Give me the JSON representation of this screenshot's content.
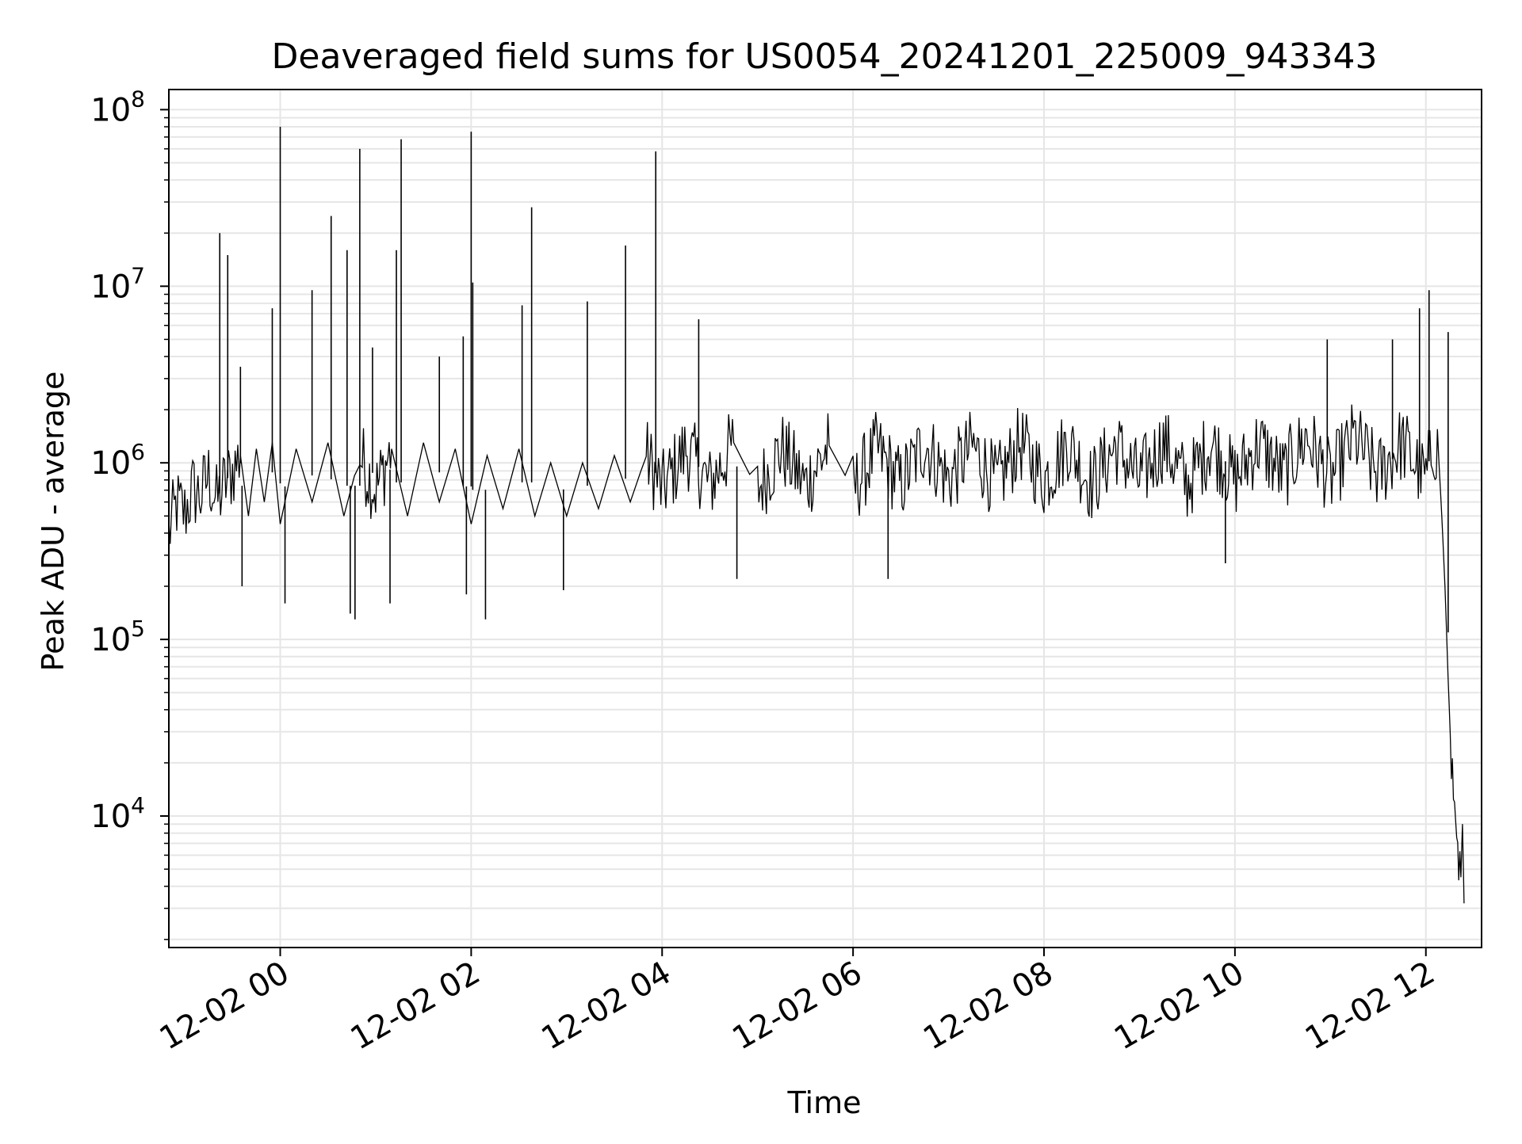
{
  "chart_data": {
    "type": "line",
    "title": "Deaveraged field sums for US0054_20241201_225009_943343",
    "xlabel": "Time",
    "ylabel": "Peak ADU - average",
    "yscale": "log",
    "xlim": [
      "2024-12-01 22:50",
      "2024-12-02 12:35"
    ],
    "ylim": [
      1800,
      130000000
    ],
    "x_ticks": [
      "2024-12-02 00:00",
      "2024-12-02 02:00",
      "2024-12-02 04:00",
      "2024-12-02 06:00",
      "2024-12-02 08:00",
      "2024-12-02 10:00",
      "2024-12-02 12:00"
    ],
    "x_tick_labels": [
      "12-02 00",
      "12-02 02",
      "12-02 04",
      "12-02 06",
      "12-02 08",
      "12-02 10",
      "12-02 12"
    ],
    "y_ticks": [
      10000,
      100000,
      1000000,
      10000000,
      100000000
    ],
    "y_tick_labels": [
      {
        "base": "10",
        "exp": "4"
      },
      {
        "base": "10",
        "exp": "5"
      },
      {
        "base": "10",
        "exp": "6"
      },
      {
        "base": "10",
        "exp": "7"
      },
      {
        "base": "10",
        "exp": "8"
      }
    ],
    "grid": true,
    "line_color": "#000000",
    "series": [
      {
        "points": [
          [
            "2024-12-01 22:50",
            400000
          ],
          [
            "2024-12-01 22:55",
            580000
          ],
          [
            "2024-12-01 23:00",
            520000
          ],
          [
            "2024-12-01 23:05",
            700000
          ],
          [
            "2024-12-01 23:10",
            650000
          ],
          [
            "2024-12-01 23:15",
            850000
          ],
          [
            "2024-12-01 23:20",
            600000
          ],
          [
            "2024-12-01 23:25",
            750000
          ],
          [
            "2024-12-01 23:30",
            900000
          ],
          [
            "2024-12-01 23:35",
            1100000
          ],
          [
            "2024-12-01 23:40",
            500000
          ],
          [
            "2024-12-01 23:45",
            1200000
          ],
          [
            "2024-12-01 23:50",
            600000
          ],
          [
            "2024-12-01 23:55",
            1300000
          ],
          [
            "2024-12-02 00:00",
            450000
          ],
          [
            "2024-12-02 00:10",
            1200000
          ],
          [
            "2024-12-02 00:20",
            600000
          ],
          [
            "2024-12-02 00:30",
            1300000
          ],
          [
            "2024-12-02 00:40",
            500000
          ],
          [
            "2024-12-02 00:50",
            1100000
          ],
          [
            "2024-12-02 01:00",
            700000
          ],
          [
            "2024-12-02 01:10",
            1200000
          ],
          [
            "2024-12-02 01:20",
            500000
          ],
          [
            "2024-12-02 01:30",
            1300000
          ],
          [
            "2024-12-02 01:40",
            600000
          ],
          [
            "2024-12-02 01:50",
            1200000
          ],
          [
            "2024-12-02 02:00",
            450000
          ],
          [
            "2024-12-02 02:10",
            1100000
          ],
          [
            "2024-12-02 02:20",
            550000
          ],
          [
            "2024-12-02 02:30",
            1200000
          ],
          [
            "2024-12-02 02:40",
            500000
          ],
          [
            "2024-12-02 02:50",
            1000000
          ],
          [
            "2024-12-02 03:00",
            500000
          ],
          [
            "2024-12-02 03:10",
            1000000
          ],
          [
            "2024-12-02 03:20",
            550000
          ],
          [
            "2024-12-02 03:30",
            1100000
          ],
          [
            "2024-12-02 03:40",
            600000
          ],
          [
            "2024-12-02 03:50",
            1100000
          ],
          [
            "2024-12-02 04:00",
            700000
          ],
          [
            "2024-12-02 04:15",
            1200000
          ],
          [
            "2024-12-02 04:30",
            750000
          ],
          [
            "2024-12-02 04:45",
            1300000
          ],
          [
            "2024-12-02 05:00",
            700000
          ],
          [
            "2024-12-02 05:15",
            1200000
          ],
          [
            "2024-12-02 05:30",
            750000
          ],
          [
            "2024-12-02 05:45",
            1250000
          ],
          [
            "2024-12-02 06:00",
            700000
          ],
          [
            "2024-12-02 06:15",
            1200000
          ],
          [
            "2024-12-02 06:30",
            750000
          ],
          [
            "2024-12-02 06:45",
            1300000
          ],
          [
            "2024-12-02 07:00",
            800000
          ],
          [
            "2024-12-02 07:15",
            1250000
          ],
          [
            "2024-12-02 07:30",
            750000
          ],
          [
            "2024-12-02 07:45",
            1300000
          ],
          [
            "2024-12-02 08:00",
            800000
          ],
          [
            "2024-12-02 08:15",
            1300000
          ],
          [
            "2024-12-02 08:30",
            750000
          ],
          [
            "2024-12-02 08:45",
            1250000
          ],
          [
            "2024-12-02 09:00",
            800000
          ],
          [
            "2024-12-02 09:15",
            1300000
          ],
          [
            "2024-12-02 09:30",
            750000
          ],
          [
            "2024-12-02 09:45",
            1300000
          ],
          [
            "2024-12-02 10:00",
            800000
          ],
          [
            "2024-12-02 10:15",
            1300000
          ],
          [
            "2024-12-02 10:30",
            850000
          ],
          [
            "2024-12-02 10:45",
            1400000
          ],
          [
            "2024-12-02 11:00",
            800000
          ],
          [
            "2024-12-02 11:15",
            1400000
          ],
          [
            "2024-12-02 11:30",
            850000
          ],
          [
            "2024-12-02 11:45",
            1300000
          ],
          [
            "2024-12-02 12:00",
            800000
          ],
          [
            "2024-12-02 12:05",
            1300000
          ],
          [
            "2024-12-02 12:08",
            1100000
          ],
          [
            "2024-12-02 12:10",
            500000
          ],
          [
            "2024-12-02 12:12",
            200000
          ],
          [
            "2024-12-02 12:14",
            60000
          ],
          [
            "2024-12-02 12:16",
            20000
          ],
          [
            "2024-12-02 12:18",
            12000
          ],
          [
            "2024-12-02 12:20",
            6000
          ],
          [
            "2024-12-02 12:22",
            4500
          ],
          [
            "2024-12-02 12:23",
            9000
          ],
          [
            "2024-12-02 12:24",
            3200
          ]
        ]
      }
    ],
    "spikes": [
      [
        "2024-12-01 23:22",
        20000000
      ],
      [
        "2024-12-01 23:27",
        15000000
      ],
      [
        "2024-12-01 23:35",
        3500000
      ],
      [
        "2024-12-01 23:55",
        7500000
      ],
      [
        "2024-12-02 00:00",
        80000000
      ],
      [
        "2024-12-02 00:20",
        9500000
      ],
      [
        "2024-12-02 00:32",
        25000000
      ],
      [
        "2024-12-02 00:42",
        16000000
      ],
      [
        "2024-12-02 00:50",
        60000000
      ],
      [
        "2024-12-02 00:58",
        4500000
      ],
      [
        "2024-12-02 01:13",
        16000000
      ],
      [
        "2024-12-02 01:16",
        68000000
      ],
      [
        "2024-12-02 01:40",
        4000000
      ],
      [
        "2024-12-02 01:55",
        5200000
      ],
      [
        "2024-12-02 02:00",
        75000000
      ],
      [
        "2024-12-02 02:01",
        10500000
      ],
      [
        "2024-12-02 02:32",
        7800000
      ],
      [
        "2024-12-02 02:38",
        28000000
      ],
      [
        "2024-12-02 03:13",
        8200000
      ],
      [
        "2024-12-02 03:37",
        17000000
      ],
      [
        "2024-12-02 03:56",
        58000000
      ],
      [
        "2024-12-02 04:23",
        6500000
      ],
      [
        "2024-12-02 10:58",
        5000000
      ],
      [
        "2024-12-02 11:39",
        5000000
      ],
      [
        "2024-12-02 11:56",
        7500000
      ],
      [
        "2024-12-02 12:02",
        9500000
      ],
      [
        "2024-12-02 12:14",
        5500000
      ]
    ],
    "dips": [
      [
        "2024-12-01 23:36",
        200000
      ],
      [
        "2024-12-02 00:03",
        160000
      ],
      [
        "2024-12-02 00:44",
        140000
      ],
      [
        "2024-12-02 00:47",
        130000
      ],
      [
        "2024-12-02 01:09",
        160000
      ],
      [
        "2024-12-02 01:57",
        180000
      ],
      [
        "2024-12-02 02:09",
        130000
      ],
      [
        "2024-12-02 02:58",
        190000
      ],
      [
        "2024-12-02 04:47",
        220000
      ],
      [
        "2024-12-02 06:22",
        220000
      ],
      [
        "2024-12-02 09:54",
        270000
      ]
    ]
  }
}
